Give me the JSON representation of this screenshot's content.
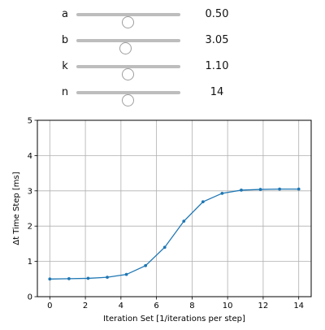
{
  "sliders": [
    {
      "label": "a",
      "value_text": "0.50",
      "fraction": 0.5
    },
    {
      "label": "b",
      "value_text": "3.05",
      "fraction": 0.48
    },
    {
      "label": "k",
      "value_text": "1.10",
      "fraction": 0.5
    },
    {
      "label": "n",
      "value_text": "14",
      "fraction": 0.5
    }
  ],
  "colors": {
    "line": "#1f77b4",
    "grid": "#b0b0b0",
    "slider_track": "#bdbdbd"
  },
  "chart_data": {
    "type": "line",
    "title": "",
    "xlabel": "Iteration Set [1/iterations per step]",
    "ylabel": "Δt Time Step [ms]",
    "xlim": [
      -0.7,
      14.7
    ],
    "ylim": [
      0,
      5
    ],
    "xticks": [
      0,
      2,
      4,
      6,
      8,
      10,
      12,
      14
    ],
    "yticks": [
      0,
      1,
      2,
      3,
      4,
      5
    ],
    "grid": true,
    "series": [
      {
        "marker": "dot",
        "x": [
          0,
          1.077,
          2.154,
          3.231,
          4.308,
          5.385,
          6.462,
          7.538,
          8.615,
          9.692,
          10.769,
          11.846,
          12.923,
          14
        ],
        "y": [
          0.5,
          0.51,
          0.52,
          0.55,
          0.63,
          0.88,
          1.4,
          2.14,
          2.69,
          2.93,
          3.02,
          3.04,
          3.05,
          3.05
        ]
      }
    ]
  }
}
